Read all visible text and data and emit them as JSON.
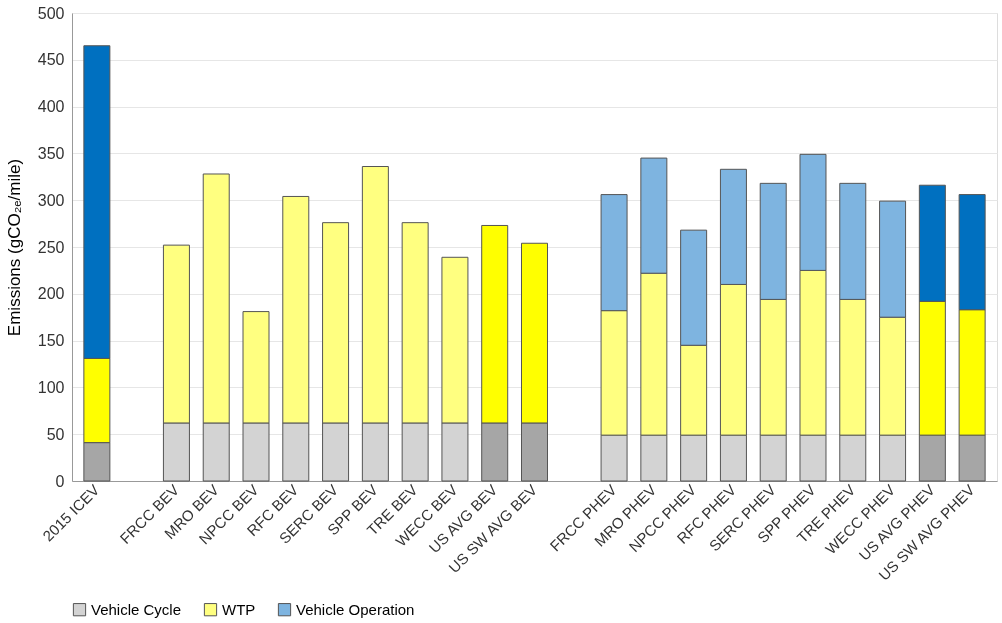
{
  "chart_data": {
    "type": "bar",
    "stacked": true,
    "ylabel": "Emissions (gCO₂ₑ/mile)",
    "categories": [
      "2015 ICEV",
      null,
      "FRCC BEV",
      "MRO BEV",
      "NPCC BEV",
      "RFC BEV",
      "SERC BEV",
      "SPP BEV",
      "TRE BEV",
      "WECC BEV",
      "US AVG BEV",
      "US SW AVG BEV",
      null,
      "FRCC PHEV",
      "MRO PHEV",
      "NPCC PHEV",
      "RFC PHEV",
      "SERC PHEV",
      "SPP PHEV",
      "TRE PHEV",
      "WECC PHEV",
      "US AVG PHEV",
      "US SW AVG PHEV"
    ],
    "series": [
      {
        "name": "Vehicle Cycle",
        "color": "#d3d3d3",
        "values": [
          41,
          null,
          62,
          62,
          62,
          62,
          62,
          62,
          62,
          62,
          62,
          62,
          null,
          49,
          49,
          49,
          49,
          49,
          49,
          49,
          49,
          49,
          49
        ],
        "colors": [
          "#a6a6a6",
          null,
          "#d3d3d3",
          "#d3d3d3",
          "#d3d3d3",
          "#d3d3d3",
          "#d3d3d3",
          "#d3d3d3",
          "#d3d3d3",
          "#d3d3d3",
          "#a6a6a6",
          "#a6a6a6",
          null,
          "#d3d3d3",
          "#d3d3d3",
          "#d3d3d3",
          "#d3d3d3",
          "#d3d3d3",
          "#d3d3d3",
          "#d3d3d3",
          "#d3d3d3",
          "#a6a6a6",
          "#a6a6a6"
        ]
      },
      {
        "name": "WTP",
        "color": "#ffff80",
        "values": [
          90,
          null,
          190,
          266,
          119,
          242,
          214,
          274,
          214,
          177,
          211,
          192,
          null,
          133,
          173,
          96,
          161,
          145,
          176,
          145,
          126,
          143,
          134
        ],
        "colors": [
          "#ffff00",
          null,
          "#ffff80",
          "#ffff80",
          "#ffff80",
          "#ffff80",
          "#ffff80",
          "#ffff80",
          "#ffff80",
          "#ffff80",
          "#ffff00",
          "#ffff00",
          null,
          "#ffff80",
          "#ffff80",
          "#ffff80",
          "#ffff80",
          "#ffff80",
          "#ffff80",
          "#ffff80",
          "#ffff80",
          "#ffff00",
          "#ffff00"
        ]
      },
      {
        "name": "Vehicle Operation",
        "color": "#7eb4e0",
        "values": [
          334,
          null,
          null,
          null,
          null,
          null,
          null,
          null,
          null,
          null,
          null,
          null,
          null,
          124,
          123,
          123,
          123,
          124,
          124,
          124,
          124,
          124,
          123
        ],
        "colors": [
          "#0070c0",
          null,
          null,
          null,
          null,
          null,
          null,
          null,
          null,
          null,
          null,
          null,
          null,
          "#7eb4e0",
          "#7eb4e0",
          "#7eb4e0",
          "#7eb4e0",
          "#7eb4e0",
          "#7eb4e0",
          "#7eb4e0",
          "#7eb4e0",
          "#0070c0",
          "#0070c0"
        ]
      }
    ],
    "ylim": [
      0,
      500
    ],
    "yticks": [
      0,
      50,
      100,
      150,
      200,
      250,
      300,
      350,
      400,
      450,
      500
    ],
    "grid": "y",
    "legend": "bottom"
  }
}
